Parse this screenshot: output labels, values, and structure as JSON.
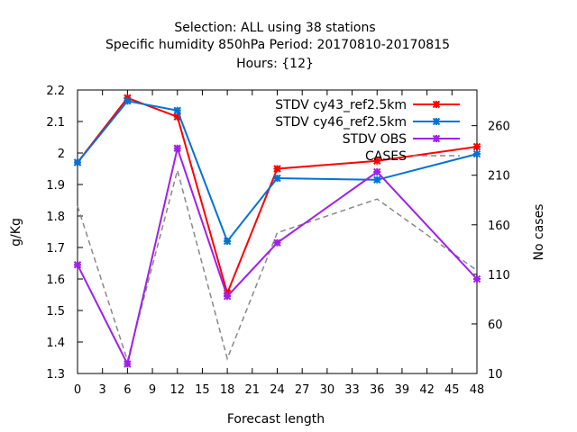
{
  "chart_data": {
    "type": "line",
    "title_lines": [
      "Selection: ALL using    38 stations",
      "Specific humidity 850hPa   Period: 20170810-20170815",
      "Hours: {12}"
    ],
    "xlabel": "Forecast length",
    "ylabel": "g/Kg",
    "y2label": "No cases",
    "xlim": [
      0,
      48
    ],
    "ylim": [
      1.3,
      2.2
    ],
    "y2lim": [
      10,
      296
    ],
    "xticks": [
      0,
      3,
      6,
      9,
      12,
      15,
      18,
      21,
      24,
      27,
      30,
      33,
      36,
      39,
      42,
      45,
      48
    ],
    "yticks": [
      1.3,
      1.4,
      1.5,
      1.6,
      1.7,
      1.8,
      1.9,
      2.0,
      2.1,
      2.2
    ],
    "ytick_labels": [
      "1.3",
      "1.4",
      "1.5",
      "1.6",
      "1.7",
      "1.8",
      "1.9",
      "2",
      "2.1",
      "2.2"
    ],
    "y2ticks": [
      10,
      60,
      110,
      160,
      210,
      260
    ],
    "grid": false,
    "legend_position": "top-right",
    "series": [
      {
        "name": "STDV cy43_ref2.5km",
        "color": "#ff0000",
        "axis": "y",
        "x": [
          0,
          6,
          12,
          18,
          24,
          36,
          48
        ],
        "values": [
          1.97,
          2.175,
          2.115,
          1.555,
          1.95,
          1.975,
          2.02
        ]
      },
      {
        "name": "STDV cy46_ref2.5km",
        "color": "#0072d6",
        "axis": "y",
        "x": [
          0,
          6,
          12,
          18,
          24,
          36,
          48
        ],
        "values": [
          1.97,
          2.165,
          2.135,
          1.72,
          1.92,
          1.915,
          1.997
        ]
      },
      {
        "name": "STDV OBS",
        "color": "#a020e8",
        "axis": "y",
        "x": [
          0,
          6,
          12,
          18,
          24,
          36,
          48
        ],
        "values": [
          1.645,
          1.33,
          2.015,
          1.545,
          1.715,
          1.94,
          1.6
        ]
      },
      {
        "name": "CASES",
        "color": "#888888",
        "axis": "y2",
        "dashed": true,
        "x": [
          0,
          6,
          12,
          18,
          24,
          36,
          48
        ],
        "values": [
          179,
          23,
          215,
          25,
          152,
          186,
          114
        ]
      }
    ]
  }
}
